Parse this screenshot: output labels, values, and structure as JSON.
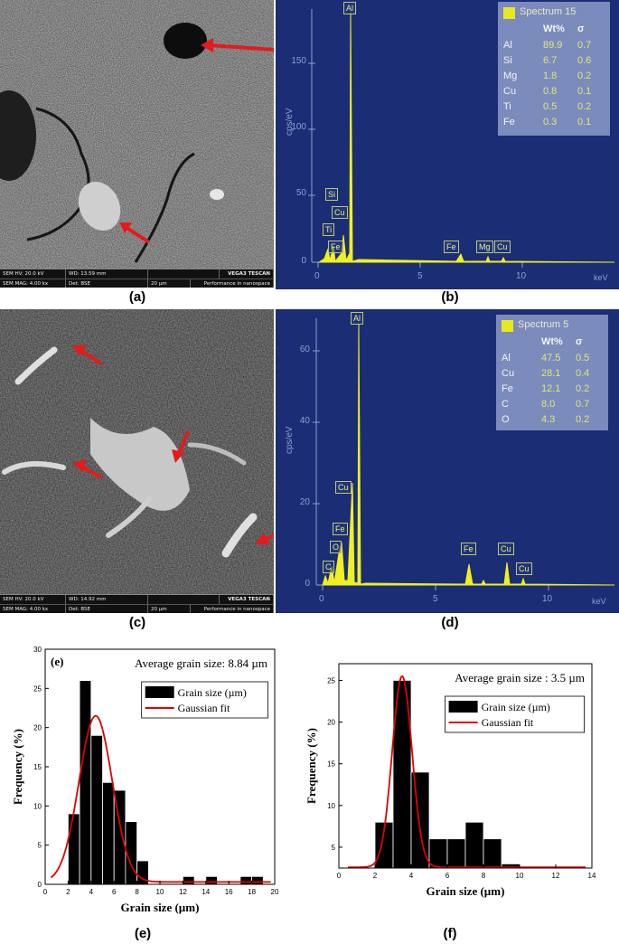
{
  "captions": {
    "a": "(a)",
    "b": "(b)",
    "c": "(c)",
    "d": "(d)",
    "e": "(e)",
    "f": "(f)"
  },
  "sem_a": {
    "hv": "SEM HV: 20.0 kV",
    "wd": "WD: 13.59 mm",
    "brand": "VEGA3 TESCAN",
    "mag": "SEM MAG: 4.00 kx",
    "det": "Det: BSE",
    "scale": "20 µm",
    "perf": "Performance in nanospace"
  },
  "sem_c": {
    "hv": "SEM HV: 20.0 kV",
    "wd": "WD: 14.92 mm",
    "brand": "VEGA3 TESCAN",
    "mag": "SEM MAG: 4.00 kx",
    "det": "Det: BSE",
    "scale": "20 µm",
    "perf": "Performance in nanospace"
  },
  "eds_b": {
    "title": "Spectrum 15",
    "ylabel": "cps/eV",
    "xunit": "keV",
    "yticks": [
      "0",
      "50",
      "100",
      "150"
    ],
    "xticks": [
      "0",
      "5",
      "10"
    ],
    "header": [
      "Wt%",
      "σ"
    ],
    "rows": [
      [
        "Al",
        "89.9",
        "0.7"
      ],
      [
        "Si",
        "6.7",
        "0.6"
      ],
      [
        "Mg",
        "1.8",
        "0.2"
      ],
      [
        "Cu",
        "0.8",
        "0.1"
      ],
      [
        "Ti",
        "0.5",
        "0.2"
      ],
      [
        "Fe",
        "0.3",
        "0.1"
      ]
    ],
    "peaks": [
      "Al",
      "Si",
      "Cu",
      "Ti",
      "Fe",
      "Fe",
      "Mg",
      "Cu"
    ]
  },
  "eds_d": {
    "title": "Spectrum 5",
    "ylabel": "cps/eV",
    "xunit": "keV",
    "yticks": [
      "0",
      "20",
      "40",
      "60"
    ],
    "xticks": [
      "0",
      "5",
      "10"
    ],
    "header": [
      "Wt%",
      "σ"
    ],
    "rows": [
      [
        "Al",
        "47.5",
        "0.5"
      ],
      [
        "Cu",
        "28.1",
        "0.4"
      ],
      [
        "Fe",
        "12.1",
        "0.2"
      ],
      [
        "C",
        "8.0",
        "0.7"
      ],
      [
        "O",
        "4.3",
        "0.2"
      ]
    ],
    "peaks": [
      "Al",
      "Cu",
      "Fe",
      "O",
      "C",
      "Fe",
      "Cu",
      "Cu"
    ]
  },
  "chart_data": [
    {
      "type": "bar",
      "panel_tag": "(e)",
      "annotation": "Average grain size: 8.84 µm",
      "xlabel": "Grain size (µm)",
      "ylabel": "Frequency (%)",
      "xlim": [
        0,
        20
      ],
      "ylim": [
        0,
        30
      ],
      "xticks": [
        0,
        2,
        4,
        6,
        8,
        10,
        12,
        14,
        16,
        18,
        20
      ],
      "yticks": [
        0,
        5,
        10,
        15,
        20,
        25,
        30
      ],
      "bin_width": 1,
      "x": [
        2.5,
        3.5,
        4.5,
        5.5,
        6.5,
        7.5,
        8.5,
        12.5,
        14.5,
        17.5,
        18.5
      ],
      "values": [
        9,
        26,
        19,
        13,
        12,
        8,
        3,
        1,
        1,
        1,
        1
      ],
      "legend": [
        "Grain size (µm)",
        "Gaussian fit"
      ],
      "legend_position": "top-right",
      "fit": {
        "mean": 4.4,
        "sigma": 1.45,
        "peak": 21.5,
        "baseline": 0.3
      },
      "colors": {
        "bars": "#000000",
        "fit": "#e00000"
      }
    },
    {
      "type": "bar",
      "annotation": "Average grain size : 3.5 µm",
      "xlabel": "Grain size (µm)",
      "ylabel": "Frequency (%)",
      "xlim": [
        0,
        14
      ],
      "ylim": [
        2.5,
        27
      ],
      "xticks": [
        0,
        2,
        4,
        6,
        8,
        10,
        12,
        14
      ],
      "yticks": [
        5,
        10,
        15,
        20,
        25
      ],
      "bin_width": 1,
      "x": [
        2.5,
        3.5,
        4.5,
        5.5,
        6.5,
        7.5,
        8.5,
        9.5
      ],
      "values": [
        8,
        25,
        14,
        6,
        6,
        8,
        6,
        3
      ],
      "legend": [
        "Grain size (µm)",
        "Gaussian fit"
      ],
      "legend_position": "top-right",
      "fit": {
        "mean": 3.5,
        "sigma": 0.55,
        "peak": 25.5,
        "baseline": 2.6
      },
      "colors": {
        "bars": "#000000",
        "fit": "#e00000"
      }
    }
  ]
}
